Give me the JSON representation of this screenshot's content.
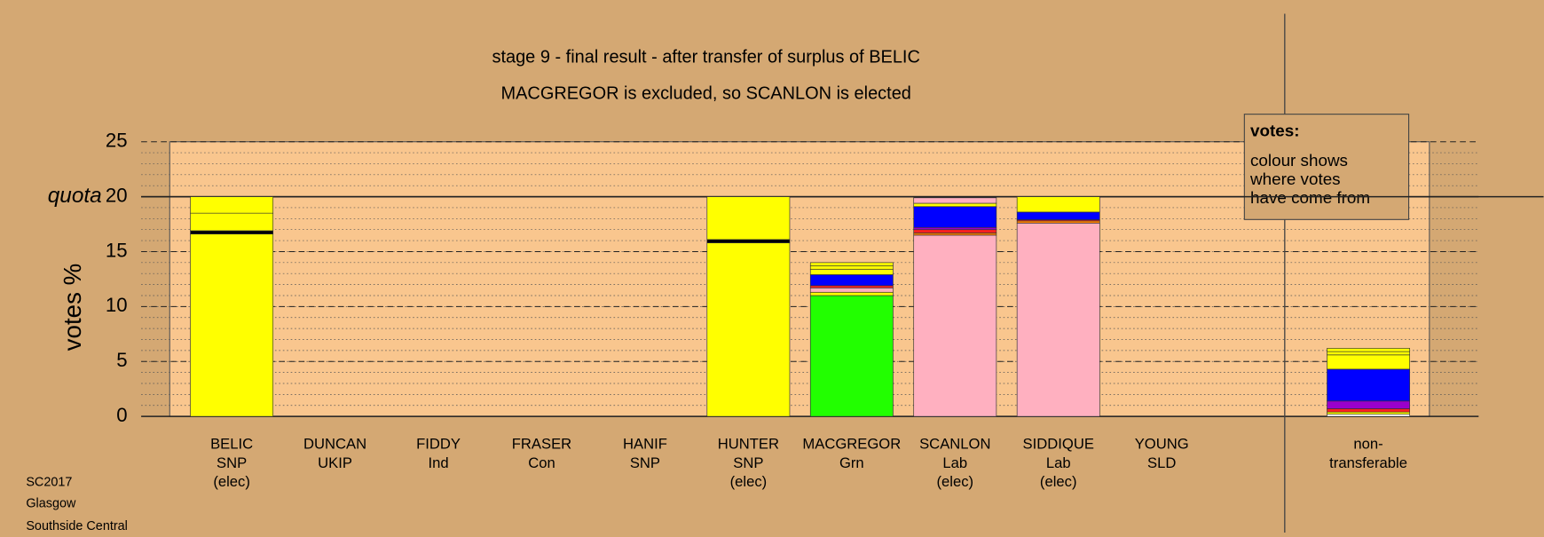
{
  "chart_data": {
    "type": "stacked-bar",
    "title": "stage 9 - final result - after transfer of surplus of BELIC",
    "subtitle": "MACGREGOR is excluded, so SCANLON is elected",
    "ylabel": "votes %",
    "ylim": [
      0,
      25
    ],
    "yticks": [
      0,
      5,
      10,
      15,
      20,
      25
    ],
    "minor_ytick_step": 1,
    "quota": {
      "value": 20,
      "label": "quota"
    },
    "categories": [
      [
        "BELIC",
        "SNP",
        "(elec)"
      ],
      [
        "DUNCAN",
        "UKIP"
      ],
      [
        "FIDDY",
        "Ind"
      ],
      [
        "FRASER",
        "Con"
      ],
      [
        "HANIF",
        "SNP"
      ],
      [
        "HUNTER",
        "SNP",
        "(elec)"
      ],
      [
        "MACGREGOR",
        "Grn"
      ],
      [
        "SCANLON",
        "Lab",
        "(elec)"
      ],
      [
        "SIDDIQUE",
        "Lab",
        "(elec)"
      ],
      [
        "YOUNG",
        "SLD"
      ],
      null,
      [
        "non-",
        "transferable"
      ]
    ],
    "segments": [
      [
        {
          "value": 16.6,
          "color": "#ffff00"
        },
        {
          "value": 0.3,
          "color": "#000000"
        },
        {
          "value": 1.6,
          "color": "#ffff00"
        },
        {
          "value": 1.5,
          "color": "#ffff00"
        }
      ],
      [],
      [],
      [],
      [],
      [
        {
          "value": 15.8,
          "color": "#ffff00"
        },
        {
          "value": 0.3,
          "color": "#000000"
        },
        {
          "value": 3.9,
          "color": "#ffff00"
        }
      ],
      [
        {
          "value": 11.0,
          "color": "#22ff00"
        },
        {
          "value": 0.3,
          "color": "#ffff00"
        },
        {
          "value": 0.4,
          "color": "#ffb0c0"
        },
        {
          "value": 0.2,
          "color": "#ff2020"
        },
        {
          "value": 1.0,
          "color": "#0000ff"
        },
        {
          "value": 0.5,
          "color": "#ffff00"
        },
        {
          "value": 0.3,
          "color": "#ffff00"
        },
        {
          "value": 0.3,
          "color": "#ffff00"
        }
      ],
      [
        {
          "value": 16.5,
          "color": "#ffb0c0"
        },
        {
          "value": 0.2,
          "color": "#ff8000"
        },
        {
          "value": 0.3,
          "color": "#ff2020"
        },
        {
          "value": 0.2,
          "color": "#9900cc"
        },
        {
          "value": 1.9,
          "color": "#0000ff"
        },
        {
          "value": 0.3,
          "color": "#ffff00"
        },
        {
          "value": 0.5,
          "color": "#ffb0c0"
        }
      ],
      [
        {
          "value": 17.6,
          "color": "#ffb0c0"
        },
        {
          "value": 0.2,
          "color": "#ff8000"
        },
        {
          "value": 0.1,
          "color": "#ff2020"
        },
        {
          "value": 0.7,
          "color": "#0000ff"
        },
        {
          "value": 1.4,
          "color": "#ffff00"
        }
      ],
      [],
      [],
      [
        {
          "value": 0.2,
          "color": "#ffffff"
        },
        {
          "value": 0.2,
          "color": "#ffff00"
        },
        {
          "value": 0.3,
          "color": "#ff2020"
        },
        {
          "value": 0.7,
          "color": "#9900cc"
        },
        {
          "value": 2.9,
          "color": "#0000ff"
        },
        {
          "value": 1.3,
          "color": "#ffff00"
        },
        {
          "value": 0.3,
          "color": "#ffff00"
        },
        {
          "value": 0.3,
          "color": "#ffff00"
        }
      ]
    ],
    "legend_box": {
      "heading": "votes:",
      "lines": [
        "colour shows",
        "where votes",
        "have come from"
      ]
    },
    "footer": [
      "SC2017",
      "Glasgow",
      "Southside Central"
    ]
  }
}
